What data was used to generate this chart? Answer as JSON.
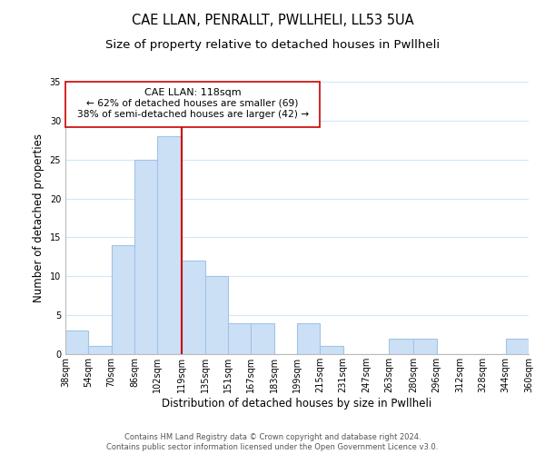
{
  "title": "CAE LLAN, PENRALLT, PWLLHELI, LL53 5UA",
  "subtitle": "Size of property relative to detached houses in Pwllheli",
  "xlabel": "Distribution of detached houses by size in Pwllheli",
  "ylabel": "Number of detached properties",
  "bar_color": "#cce0f5",
  "bar_edge_color": "#a0c4e8",
  "highlight_line_color": "#cc0000",
  "highlight_value": 119,
  "bins": [
    38,
    54,
    70,
    86,
    102,
    119,
    135,
    151,
    167,
    183,
    199,
    215,
    231,
    247,
    263,
    280,
    296,
    312,
    328,
    344,
    360
  ],
  "bin_labels": [
    "38sqm",
    "54sqm",
    "70sqm",
    "86sqm",
    "102sqm",
    "119sqm",
    "135sqm",
    "151sqm",
    "167sqm",
    "183sqm",
    "199sqm",
    "215sqm",
    "231sqm",
    "247sqm",
    "263sqm",
    "280sqm",
    "296sqm",
    "312sqm",
    "328sqm",
    "344sqm",
    "360sqm"
  ],
  "counts": [
    3,
    1,
    14,
    25,
    28,
    12,
    10,
    4,
    4,
    0,
    4,
    1,
    0,
    0,
    2,
    2,
    0,
    0,
    0,
    2
  ],
  "ylim": [
    0,
    35
  ],
  "yticks": [
    0,
    5,
    10,
    15,
    20,
    25,
    30,
    35
  ],
  "annotation_title": "CAE LLAN: 118sqm",
  "annotation_line1": "← 62% of detached houses are smaller (69)",
  "annotation_line2": "38% of semi-detached houses are larger (42) →",
  "footer_line1": "Contains HM Land Registry data © Crown copyright and database right 2024.",
  "footer_line2": "Contains public sector information licensed under the Open Government Licence v3.0.",
  "background_color": "#ffffff",
  "grid_color": "#d0e8f8",
  "title_fontsize": 10.5,
  "subtitle_fontsize": 9.5,
  "axis_label_fontsize": 8.5,
  "tick_fontsize": 7,
  "annotation_fontsize": 8,
  "footer_fontsize": 6
}
